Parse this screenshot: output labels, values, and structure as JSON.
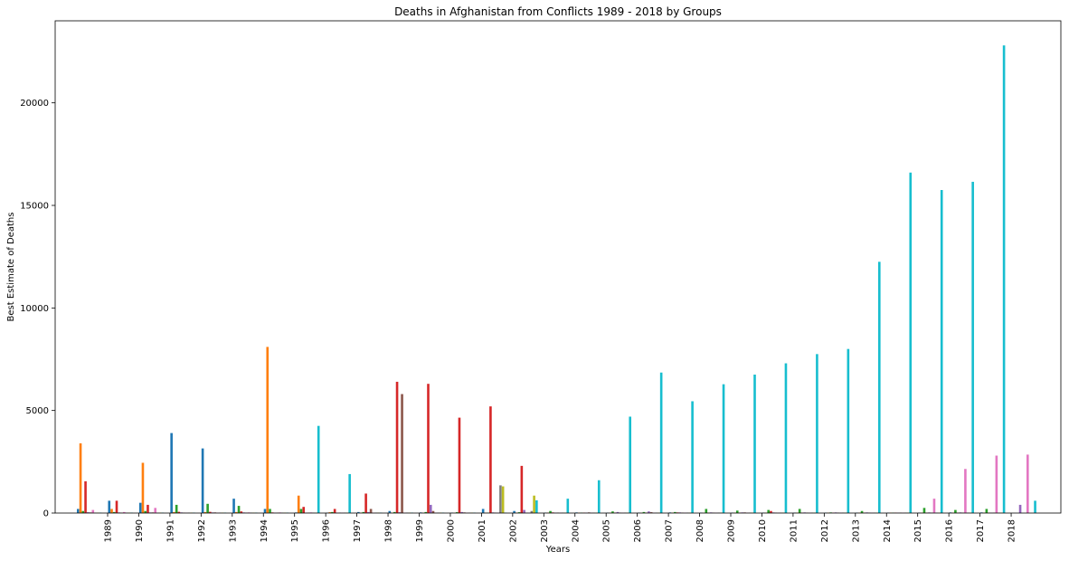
{
  "chart_data": {
    "type": "bar",
    "title": "Deaths in Afghanistan from Conflicts 1989 - 2018 by Groups",
    "xlabel": "Years",
    "ylabel": "Best Estimate of Deaths",
    "ylim": [
      0,
      24000
    ],
    "yticks": [
      0,
      5000,
      10000,
      15000,
      20000
    ],
    "categories": [
      "1989",
      "1990",
      "1991",
      "1992",
      "1993",
      "1994",
      "1995",
      "1996",
      "1997",
      "1998",
      "1999",
      "2000",
      "2001",
      "2002",
      "2003",
      "2004",
      "2005",
      "2006",
      "2007",
      "2008",
      "2009",
      "2010",
      "2011",
      "2012",
      "2013",
      "2014",
      "2015",
      "2016",
      "2017",
      "2018"
    ],
    "grid": false,
    "series": [
      {
        "color": "#1f77b4",
        "values": [
          200,
          600,
          500,
          3900,
          3150,
          700,
          200,
          30,
          20,
          50,
          100,
          30,
          20,
          200,
          100,
          20,
          30,
          20,
          20,
          30,
          20,
          20,
          20,
          20,
          20,
          20,
          20,
          20,
          30,
          30
        ]
      },
      {
        "color": "#ff7f0e",
        "values": [
          3400,
          200,
          2450,
          50,
          50,
          50,
          8100,
          850,
          40,
          20,
          20,
          10,
          10,
          20,
          20,
          20,
          20,
          20,
          10,
          20,
          10,
          20,
          20,
          20,
          20,
          20,
          20,
          20,
          20,
          20
        ]
      },
      {
        "color": "#2ca02c",
        "values": [
          100,
          50,
          100,
          400,
          450,
          350,
          200,
          200,
          50,
          50,
          50,
          50,
          40,
          20,
          40,
          100,
          20,
          80,
          50,
          50,
          200,
          120,
          150,
          200,
          30,
          100,
          20,
          250,
          150,
          200
        ]
      },
      {
        "color": "#d62728",
        "values": [
          1550,
          600,
          400,
          60,
          60,
          80,
          30,
          300,
          200,
          950,
          6400,
          6300,
          4650,
          5200,
          2300,
          30,
          20,
          20,
          20,
          30,
          20,
          20,
          100,
          20,
          20,
          20,
          20,
          20,
          20,
          20
        ]
      },
      {
        "color": "#9467bd",
        "values": [
          40,
          30,
          30,
          30,
          30,
          30,
          20,
          20,
          20,
          50,
          40,
          400,
          50,
          30,
          150,
          20,
          20,
          50,
          80,
          30,
          30,
          30,
          30,
          30,
          30,
          30,
          20,
          30,
          30,
          20
        ]
      },
      {
        "color": "#8c564b",
        "values": [
          30,
          20,
          30,
          20,
          30,
          20,
          20,
          20,
          20,
          200,
          5800,
          100,
          30,
          20,
          20,
          20,
          30,
          20,
          40,
          20,
          20,
          30,
          20,
          20,
          20,
          20,
          20,
          20,
          20,
          20
        ]
      },
      {
        "color": "#e377c2",
        "values": [
          150,
          50,
          250,
          20,
          20,
          30,
          30,
          30,
          20,
          20,
          20,
          20,
          20,
          20,
          20,
          20,
          20,
          20,
          20,
          20,
          20,
          20,
          20,
          20,
          20,
          20,
          20,
          700,
          2150,
          2800
        ]
      },
      {
        "color": "#7f7f7f",
        "values": [
          20,
          20,
          20,
          20,
          20,
          20,
          20,
          20,
          20,
          20,
          20,
          20,
          20,
          1350,
          100,
          20,
          20,
          20,
          20,
          20,
          20,
          20,
          20,
          20,
          20,
          20,
          20,
          20,
          20,
          20
        ]
      },
      {
        "color": "#bcbd22",
        "values": [
          20,
          20,
          20,
          20,
          20,
          20,
          20,
          20,
          20,
          20,
          20,
          20,
          20,
          1300,
          850,
          20,
          20,
          20,
          20,
          20,
          20,
          20,
          20,
          20,
          20,
          20,
          20,
          20,
          20,
          20
        ]
      },
      {
        "color": "#17becf",
        "values": [
          20,
          20,
          20,
          20,
          20,
          20,
          20,
          4250,
          1900,
          20,
          20,
          20,
          20,
          20,
          620,
          700,
          1600,
          4700,
          6850,
          5450,
          6280,
          6750,
          7300,
          7750,
          8000,
          12250,
          16600,
          15750,
          16150,
          22800
        ]
      }
    ],
    "trailing": [
      {
        "color": "#9467bd",
        "value": 400
      },
      {
        "color": "#e377c2",
        "value": 2850
      },
      {
        "color": "#17becf",
        "value": 600
      }
    ]
  }
}
